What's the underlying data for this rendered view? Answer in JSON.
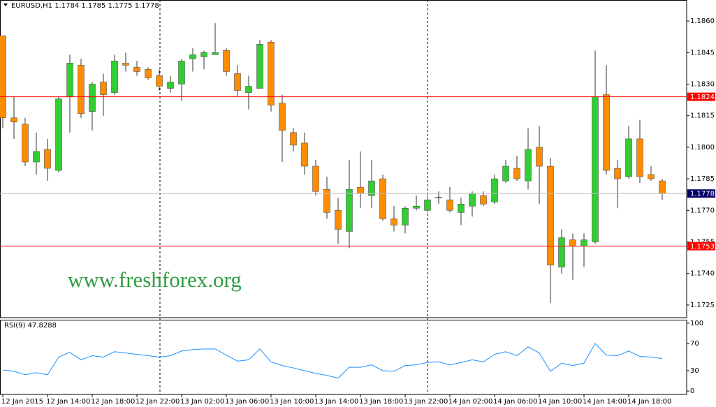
{
  "chart_data": [
    {
      "type": "candlestick",
      "title": "EURUSD,H1  1.1784 1.1785 1.1775 1.1778",
      "categories": [
        "12 Jan 2015",
        null,
        null,
        null,
        "12 Jan 14:00",
        null,
        null,
        null,
        "12 Jan 18:00",
        null,
        null,
        null,
        "12 Jan 22:00",
        null,
        null,
        null,
        "13 Jan 02:00",
        null,
        null,
        null,
        "13 Jan 06:00",
        null,
        null,
        null,
        "13 Jan 10:00",
        null,
        null,
        null,
        "13 Jan 14:00",
        null,
        null,
        null,
        "13 Jan 18:00",
        null,
        null,
        null,
        "13 Jan 22:00",
        null,
        null,
        null,
        "14 Jan 02:00",
        null,
        null,
        null,
        "14 Jan 06:00",
        null,
        null,
        null,
        "14 Jan 10:00",
        null,
        null,
        null,
        "14 Jan 14:00",
        null,
        null,
        null,
        "14 Jan 18:00",
        null,
        null,
        null
      ],
      "open": [
        1.1853,
        1.1814,
        1.1811,
        1.1793,
        1.1799,
        1.1789,
        1.1824,
        1.1839,
        1.1817,
        1.1831,
        1.1826,
        1.184,
        1.1838,
        1.1837,
        1.1834,
        1.1828,
        1.183,
        1.1842,
        1.1843,
        1.1844,
        1.1846,
        1.1835,
        1.1826,
        1.1828,
        1.185,
        1.1821,
        1.1807,
        1.1802,
        1.1791,
        1.178,
        1.177,
        1.176,
        1.1781,
        1.1777,
        1.1785,
        1.1766,
        1.1763,
        1.1771,
        1.177,
        1.1776,
        1.1775,
        1.1769,
        1.1772,
        1.1777,
        1.1774,
        1.1784,
        1.179,
        1.1784,
        1.18,
        1.1791,
        1.1743,
        1.1756,
        1.1753,
        1.1755,
        1.1825,
        1.179,
        1.1786,
        1.1804,
        1.1787,
        1.1784
      ],
      "high": [
        1.1853,
        1.1824,
        1.1814,
        1.1807,
        1.1804,
        1.1824,
        1.1844,
        1.1842,
        1.1831,
        1.1835,
        1.1844,
        1.1845,
        1.1841,
        1.1838,
        1.1837,
        1.1834,
        1.1842,
        1.1847,
        1.1846,
        1.1859,
        1.1847,
        1.1839,
        1.1834,
        1.1851,
        1.1851,
        1.1825,
        1.1809,
        1.1807,
        1.1794,
        1.1786,
        1.1776,
        1.1794,
        1.1798,
        1.1794,
        1.1787,
        1.1772,
        1.1772,
        1.1777,
        1.1777,
        1.1779,
        1.1781,
        1.1776,
        1.1779,
        1.1779,
        1.1787,
        1.1794,
        1.1796,
        1.1809,
        1.181,
        1.1795,
        1.1761,
        1.1759,
        1.1759,
        1.1846,
        1.1839,
        1.1794,
        1.181,
        1.1813,
        1.1791,
        1.1785
      ],
      "low": [
        1.1809,
        1.1804,
        1.1791,
        1.1787,
        1.1784,
        1.1788,
        1.1807,
        1.1814,
        1.1808,
        1.1815,
        1.1825,
        1.1836,
        1.1834,
        1.1832,
        1.1827,
        1.1826,
        1.1822,
        1.1836,
        1.1837,
        1.1844,
        1.1834,
        1.1824,
        1.1818,
        1.1828,
        1.1817,
        1.1793,
        1.1798,
        1.1787,
        1.1777,
        1.1766,
        1.1754,
        1.1752,
        1.1771,
        1.1771,
        1.1765,
        1.176,
        1.1759,
        1.177,
        1.1769,
        1.1773,
        1.1769,
        1.1763,
        1.1767,
        1.1772,
        1.1773,
        1.1783,
        1.1784,
        1.178,
        1.1773,
        1.1726,
        1.174,
        1.1737,
        1.1743,
        1.1754,
        1.1787,
        1.1771,
        1.1785,
        1.1783,
        1.1784,
        1.1775
      ],
      "close": [
        1.1814,
        1.1812,
        1.1793,
        1.1798,
        1.179,
        1.1823,
        1.184,
        1.1816,
        1.183,
        1.1825,
        1.1841,
        1.1839,
        1.1836,
        1.1833,
        1.1829,
        1.1831,
        1.1841,
        1.1844,
        1.1845,
        1.1845,
        1.1836,
        1.1827,
        1.1829,
        1.1849,
        1.182,
        1.1808,
        1.1801,
        1.1791,
        1.1779,
        1.1769,
        1.1761,
        1.178,
        1.1778,
        1.1784,
        1.1766,
        1.1763,
        1.1771,
        1.1772,
        1.1775,
        1.1776,
        1.177,
        1.1773,
        1.1778,
        1.1773,
        1.1785,
        1.1791,
        1.1785,
        1.1799,
        1.1791,
        1.1744,
        1.1757,
        1.1753,
        1.1756,
        1.1824,
        1.1789,
        1.1785,
        1.1804,
        1.1786,
        1.1785,
        1.1778
      ],
      "up_color": "#32cd32",
      "down_color": "#ff8c00",
      "ylim": [
        1.1719,
        1.187
      ],
      "yticks": [
        1.1725,
        {
          "value": 1.174,
          "label": "1.1740"
        },
        1.1755,
        {
          "value": 1.177,
          "label": "1.1770"
        },
        1.1785,
        {
          "value": 1.18,
          "label": "1.1800"
        },
        1.1815,
        {
          "value": 1.183,
          "label": "1.1830"
        },
        1.1845,
        {
          "value": 1.186,
          "label": "1.1860"
        }
      ],
      "hlines": [
        {
          "value": 1.1824,
          "color": "#ff0000"
        },
        {
          "value": 1.1753,
          "color": "#ff0000"
        }
      ],
      "current_price": 1.1778,
      "watermark": "www.freshforex.org"
    },
    {
      "type": "line",
      "title": "RSI(9) 47.8288",
      "color": "#1e90ff",
      "values": [
        31,
        29,
        24,
        27,
        24,
        50,
        57,
        46,
        52,
        50,
        58,
        56,
        54,
        52,
        50,
        52,
        59,
        61,
        62,
        62,
        53,
        44,
        46,
        62,
        43,
        37.5,
        34,
        30,
        26,
        23,
        19,
        35,
        35,
        38.5,
        30,
        29,
        37.5,
        38.5,
        42,
        43,
        38.5,
        42,
        46,
        43,
        54,
        58,
        52,
        65,
        56,
        29,
        41,
        37.5,
        41,
        70,
        53,
        52,
        59,
        51,
        50,
        47.8288
      ],
      "ylim": [
        -5,
        105
      ],
      "yticks": [
        0,
        30,
        70,
        100
      ]
    }
  ]
}
